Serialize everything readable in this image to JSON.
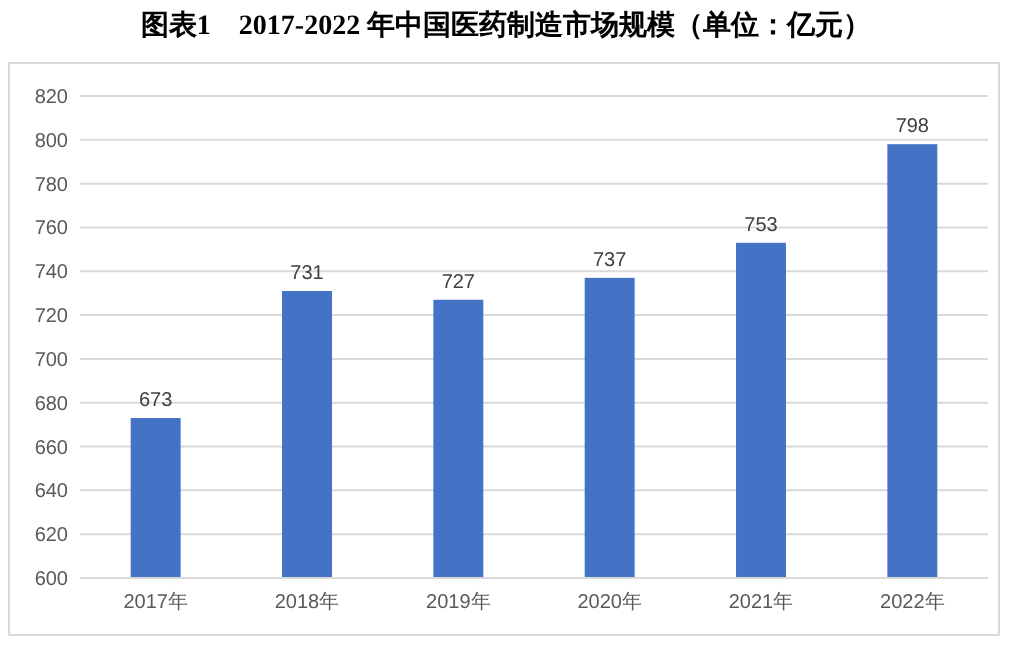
{
  "chart_data": {
    "type": "bar",
    "title": "图表1　2017-2022 年中国医药制造市场规模（单位：亿元）",
    "categories": [
      "2017年",
      "2018年",
      "2019年",
      "2020年",
      "2021年",
      "2022年"
    ],
    "values": [
      673,
      731,
      727,
      737,
      753,
      798
    ],
    "color": "#4472c4",
    "ylim": [
      600,
      820
    ],
    "yticks": [
      600,
      620,
      640,
      660,
      680,
      700,
      720,
      740,
      760,
      780,
      800,
      820
    ],
    "grid": "y",
    "data_labels": true
  }
}
